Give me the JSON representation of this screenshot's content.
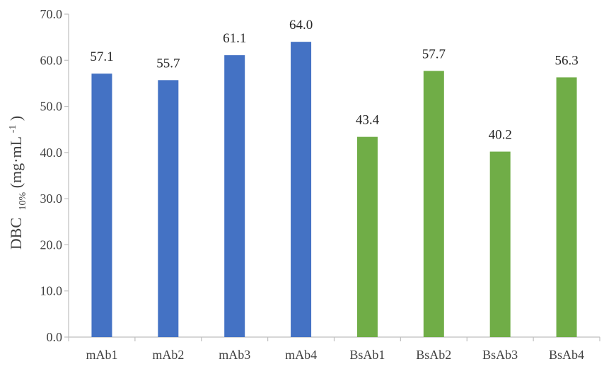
{
  "chart_data": {
    "type": "bar",
    "title": "",
    "xlabel": "",
    "ylabel": {
      "main": "DBC",
      "subscript": "10%",
      "unit_open": " (mg·mL",
      "unit_superscript": "-1",
      "unit_close": ")"
    },
    "ylim": [
      0,
      70
    ],
    "yticks": [
      "0.0",
      "10.0",
      "20.0",
      "30.0",
      "40.0",
      "50.0",
      "60.0",
      "70.0"
    ],
    "ytick_values": [
      0,
      10,
      20,
      30,
      40,
      50,
      60,
      70
    ],
    "grid": false,
    "legend": "none",
    "categories": [
      "mAb1",
      "mAb2",
      "mAb3",
      "mAb4",
      "BsAb1",
      "BsAb2",
      "BsAb3",
      "BsAb4"
    ],
    "values": [
      57.1,
      55.7,
      61.1,
      64.0,
      43.4,
      57.7,
      40.2,
      56.3
    ],
    "value_labels": [
      "57.1",
      "55.7",
      "61.1",
      "64.0",
      "43.4",
      "57.7",
      "40.2",
      "56.3"
    ],
    "bar_colors": [
      "#4472c4",
      "#4472c4",
      "#4472c4",
      "#4472c4",
      "#70ad47",
      "#70ad47",
      "#70ad47",
      "#70ad47"
    ]
  }
}
